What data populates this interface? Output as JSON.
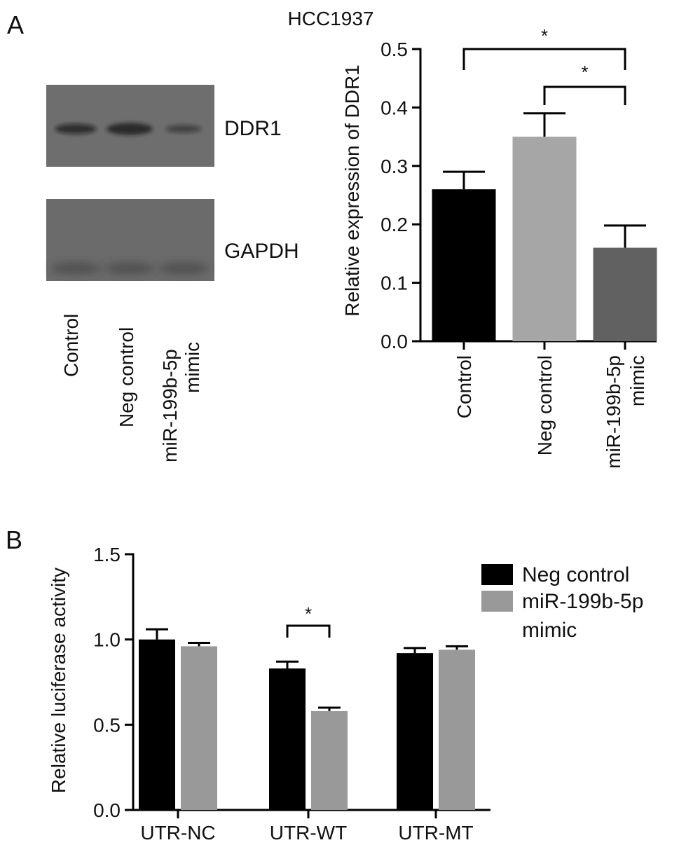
{
  "panel_a": {
    "label": "A",
    "blot": {
      "bands": [
        "DDR1",
        "GAPDH"
      ],
      "lanes": [
        "Control",
        "Neg control",
        "miR-199b-5p",
        "mimic"
      ],
      "ddr1_intensity": [
        0.55,
        0.75,
        0.25
      ],
      "gapdh_intensity": [
        1.0,
        1.0,
        1.0
      ]
    }
  },
  "panel_b": {
    "label": "B",
    "legend_lines": [
      "Neg control",
      "miR-199b-5p",
      "mimic"
    ]
  },
  "chart_data": [
    {
      "type": "bar",
      "title": "HCC1937",
      "ylabel": "Relative expression of DDR1",
      "xlabel": "",
      "categories": [
        "Control",
        "Neg control",
        "miR-199b-5p mimic"
      ],
      "category_label_lines": [
        [
          "Control"
        ],
        [
          "Neg control"
        ],
        [
          "miR-199b-5p",
          "mimic"
        ]
      ],
      "values": [
        0.26,
        0.35,
        0.16
      ],
      "errors": [
        0.03,
        0.04,
        0.038
      ],
      "colors": [
        "#000000",
        "#a6a6a6",
        "#616161"
      ],
      "ylim": [
        0,
        0.5
      ],
      "yticks": [
        "0.0",
        "0.1",
        "0.2",
        "0.3",
        "0.4",
        "0.5"
      ],
      "significance": [
        {
          "from": 0,
          "to": 2,
          "label": "*"
        },
        {
          "from": 1,
          "to": 2,
          "label": "*"
        }
      ]
    },
    {
      "type": "bar",
      "title": "",
      "ylabel": "Relative luciferase activity",
      "xlabel": "",
      "categories": [
        "UTR-NC",
        "UTR-WT",
        "UTR-MT"
      ],
      "series": [
        {
          "name": "Neg control",
          "color": "#000000",
          "values": [
            1.0,
            0.83,
            0.92
          ],
          "errors": [
            0.06,
            0.04,
            0.03
          ]
        },
        {
          "name": "miR-199b-5p mimic",
          "color": "#999999",
          "values": [
            0.96,
            0.58,
            0.94
          ],
          "errors": [
            0.02,
            0.02,
            0.02
          ]
        }
      ],
      "ylim": [
        0,
        1.5
      ],
      "yticks": [
        "0.0",
        "0.5",
        "1.0",
        "1.5"
      ],
      "significance": [
        {
          "category": 1,
          "label": "*"
        }
      ],
      "legend_position": "right"
    }
  ]
}
